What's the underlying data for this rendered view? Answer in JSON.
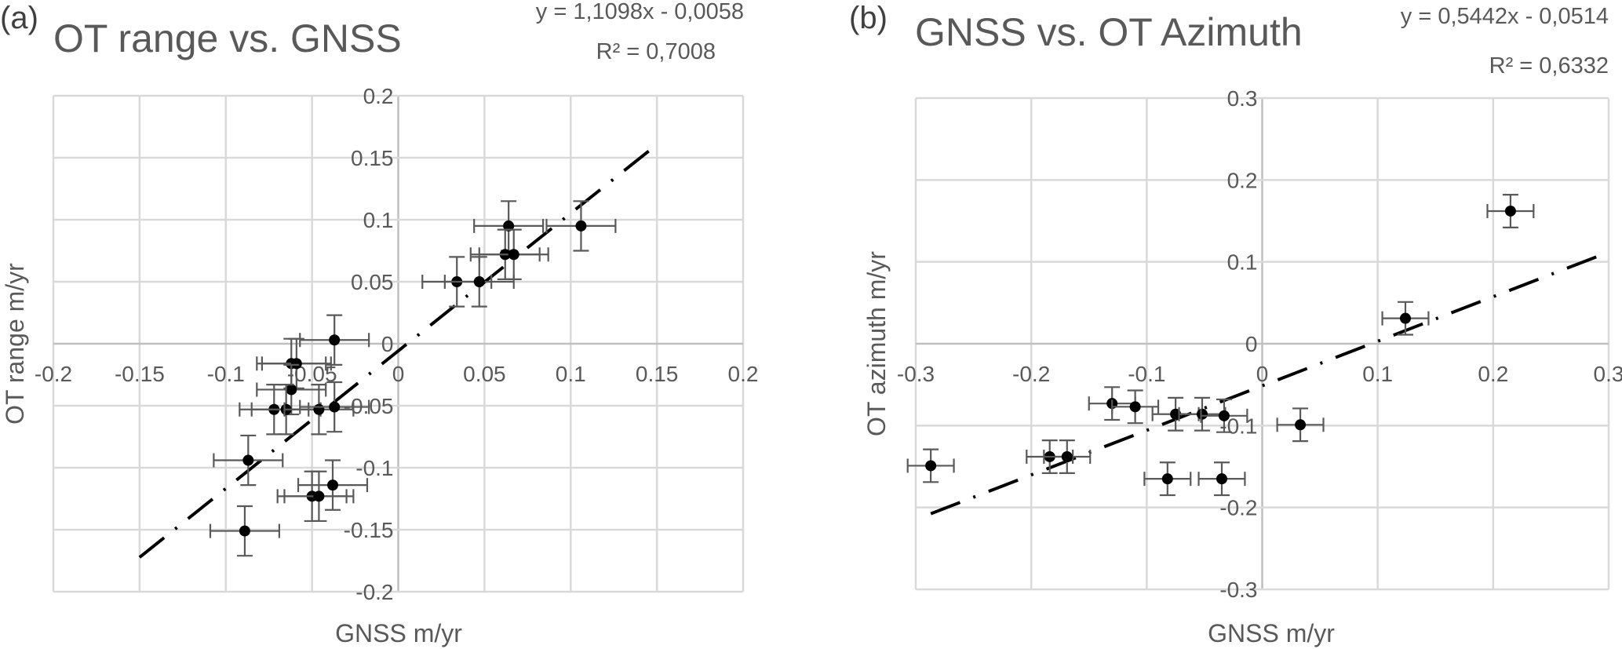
{
  "chart_data": [
    {
      "type": "scatter",
      "panel_label": "(a)",
      "title": "OT range vs. GNSS",
      "xlabel": "GNSS m/yr",
      "ylabel": "OT range  m/yr",
      "xlim": [
        -0.2,
        0.2
      ],
      "ylim": [
        -0.2,
        0.2
      ],
      "xticks": [
        -0.2,
        -0.15,
        -0.1,
        -0.05,
        0,
        0.05,
        0.1,
        0.15,
        0.2
      ],
      "yticks": [
        -0.2,
        -0.15,
        -0.1,
        -0.05,
        0,
        0.05,
        0.1,
        0.15,
        0.2
      ],
      "xtick_labels": [
        "-0.2",
        "-0.15",
        "-0.1",
        "-0.05",
        "0",
        "0.05",
        "0.1",
        "0.15",
        "0.2"
      ],
      "ytick_labels": [
        "-0.2",
        "-0.15",
        "-0.1",
        "-0.05",
        "0",
        "0.05",
        "0.1",
        "0.15",
        "0.2"
      ],
      "grid": true,
      "error_x": 0.02,
      "error_y": 0.02,
      "points": [
        {
          "x": 0.064,
          "y": 0.095
        },
        {
          "x": 0.106,
          "y": 0.095
        },
        {
          "x": 0.062,
          "y": 0.072
        },
        {
          "x": 0.067,
          "y": 0.072
        },
        {
          "x": 0.034,
          "y": 0.05
        },
        {
          "x": 0.047,
          "y": 0.05
        },
        {
          "x": -0.037,
          "y": 0.003
        },
        {
          "x": -0.062,
          "y": -0.016
        },
        {
          "x": -0.059,
          "y": -0.016
        },
        {
          "x": -0.062,
          "y": -0.037
        },
        {
          "x": -0.072,
          "y": -0.053
        },
        {
          "x": -0.065,
          "y": -0.053
        },
        {
          "x": -0.046,
          "y": -0.053
        },
        {
          "x": -0.037,
          "y": -0.051
        },
        {
          "x": -0.087,
          "y": -0.094
        },
        {
          "x": -0.038,
          "y": -0.114
        },
        {
          "x": -0.05,
          "y": -0.123
        },
        {
          "x": -0.046,
          "y": -0.123
        },
        {
          "x": -0.089,
          "y": -0.151
        }
      ],
      "trendline": {
        "slope": 1.1098,
        "intercept": -0.0058,
        "x_range": [
          -0.15,
          0.15
        ],
        "equation_label": "y = 1,1098x - 0,0058",
        "r2_label": "R² = 0,7008",
        "style": "dash-dot"
      }
    },
    {
      "type": "scatter",
      "panel_label": "(b)",
      "title": "GNSS vs. OT Azimuth",
      "xlabel": "GNSS m/yr",
      "ylabel": "OT azimuth m/yr",
      "xlim": [
        -0.3,
        0.3
      ],
      "ylim": [
        -0.3,
        0.3
      ],
      "xticks": [
        -0.3,
        -0.2,
        -0.1,
        0,
        0.1,
        0.2,
        0.3
      ],
      "yticks": [
        -0.3,
        -0.2,
        -0.1,
        0,
        0.1,
        0.2,
        0.3
      ],
      "xtick_labels": [
        "-0.3",
        "-0.2",
        "-0.1",
        "0",
        "0.1",
        "0.2",
        "0.3"
      ],
      "ytick_labels": [
        "-0.3",
        "-0.2",
        "-0.1",
        "0",
        "0.1",
        "0.2",
        "0.3"
      ],
      "grid": true,
      "error_x": 0.02,
      "error_y": 0.02,
      "points": [
        {
          "x": 0.215,
          "y": 0.162
        },
        {
          "x": 0.124,
          "y": 0.031
        },
        {
          "x": -0.13,
          "y": -0.073
        },
        {
          "x": -0.11,
          "y": -0.077
        },
        {
          "x": -0.075,
          "y": -0.086
        },
        {
          "x": -0.052,
          "y": -0.086
        },
        {
          "x": -0.033,
          "y": -0.088
        },
        {
          "x": 0.033,
          "y": -0.099
        },
        {
          "x": -0.287,
          "y": -0.149
        },
        {
          "x": -0.184,
          "y": -0.138
        },
        {
          "x": -0.169,
          "y": -0.138
        },
        {
          "x": -0.082,
          "y": -0.165
        },
        {
          "x": -0.035,
          "y": -0.165
        }
      ],
      "trendline": {
        "slope": 0.5442,
        "intercept": -0.0514,
        "x_range": [
          -0.287,
          0.29
        ],
        "equation_label": "y = 0,5442x - 0,0514",
        "r2_label": "R² = 0,6332",
        "style": "dash-dot"
      }
    }
  ]
}
